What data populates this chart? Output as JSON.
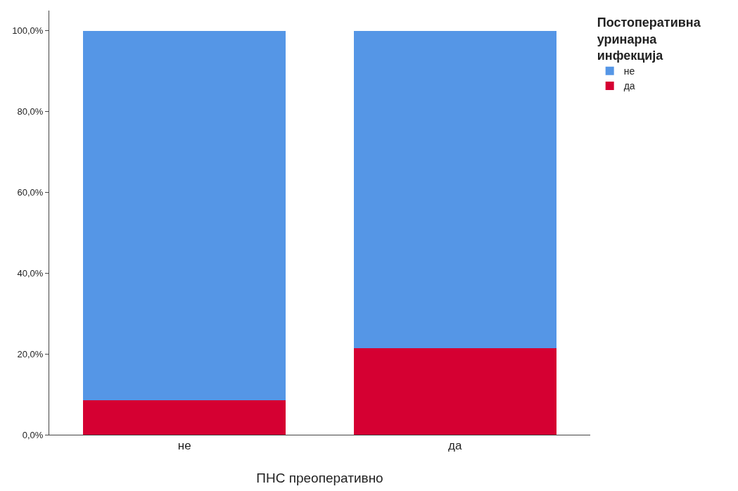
{
  "chart_data": {
    "type": "bar",
    "stacked": true,
    "xlabel": "ПНС преоперативно",
    "legend_title": "Постоперативна уринарна инфекција",
    "categories": [
      "не",
      "да"
    ],
    "series": [
      {
        "name": "да",
        "color": "#d50032",
        "values": [
          8.5,
          21.4
        ]
      },
      {
        "name": "не",
        "color": "#5596e6",
        "values": [
          91.5,
          78.6
        ]
      }
    ],
    "ylim": [
      0,
      105
    ],
    "yticks": [
      {
        "value": 0,
        "label": "0,0%"
      },
      {
        "value": 20,
        "label": "20,0%"
      },
      {
        "value": 40,
        "label": "40,0%"
      },
      {
        "value": 60,
        "label": "60,0%"
      },
      {
        "value": 80,
        "label": "80,0%"
      },
      {
        "value": 100,
        "label": "100,0%"
      }
    ],
    "legend": "top right"
  }
}
